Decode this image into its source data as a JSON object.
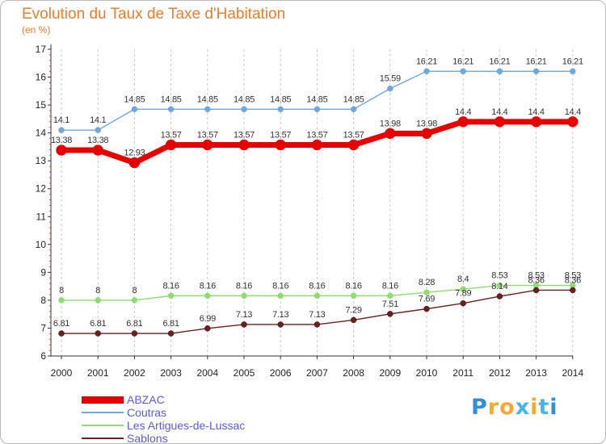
{
  "title": "Evolution du Taux de Taxe d'Habitation",
  "unit": "(en %)",
  "logo": {
    "text": "Proxiti",
    "colors": [
      "#2f8fd8",
      "#f2a93b",
      "#f2a93b",
      "#46b6e8",
      "#f2a93b",
      "#46b6e8",
      "#2f8fd8"
    ]
  },
  "chart_data": {
    "type": "line",
    "title": "Evolution du Taux de Taxe d'Habitation",
    "ylabel": "(en %)",
    "xlabel": "",
    "x": [
      "2000",
      "2001",
      "2002",
      "2003",
      "2004",
      "2005",
      "2006",
      "2007",
      "2008",
      "2009",
      "2010",
      "2011",
      "2012",
      "2013",
      "2014"
    ],
    "yticks": [
      "6",
      "7",
      "8",
      "9",
      "10",
      "11",
      "12",
      "13",
      "14",
      "15",
      "16",
      "17"
    ],
    "ylim": [
      6,
      17
    ],
    "grid": "vertical dashed",
    "legend_position": "bottom-left",
    "series": [
      {
        "name": "ABZAC",
        "color": "#e60000",
        "values": [
          13.38,
          13.38,
          12.93,
          13.57,
          13.57,
          13.57,
          13.57,
          13.57,
          13.57,
          13.98,
          13.98,
          14.4,
          14.4,
          14.4,
          14.4
        ],
        "labels": [
          "13.38",
          "13.38",
          "12.93",
          "13.57",
          "13.57",
          "13.57",
          "13.57",
          "13.57",
          "13.57",
          "13.98",
          "13.98",
          "14.4",
          "14.4",
          "14.4",
          "14.4"
        ]
      },
      {
        "name": "Coutras",
        "color": "#6fa8dc",
        "values": [
          14.1,
          14.1,
          14.85,
          14.85,
          14.85,
          14.85,
          14.85,
          14.85,
          14.85,
          15.59,
          16.21,
          16.21,
          16.21,
          16.21,
          16.21
        ],
        "labels": [
          "14.1",
          "14.1",
          "14.85",
          "14.85",
          "14.85",
          "14.85",
          "14.85",
          "14.85",
          "14.85",
          "15.59",
          "16.21",
          "16.21",
          "16.21",
          "16.21",
          "16.21"
        ]
      },
      {
        "name": "Les Artigues-de-Lussac",
        "color": "#8fdc6f",
        "values": [
          8,
          8,
          8,
          8.16,
          8.16,
          8.16,
          8.16,
          8.16,
          8.16,
          8.16,
          8.28,
          8.4,
          8.53,
          8.53,
          8.53
        ],
        "labels": [
          "8",
          "8",
          "8",
          "8.16",
          "8.16",
          "8.16",
          "8.16",
          "8.16",
          "8.16",
          "8.16",
          "8.28",
          "8.4",
          "8.53",
          "8.53",
          "8.53"
        ]
      },
      {
        "name": "Sablons",
        "color": "#6b1f1f",
        "values": [
          6.81,
          6.81,
          6.81,
          6.81,
          6.99,
          7.13,
          7.13,
          7.13,
          7.29,
          7.51,
          7.69,
          7.89,
          8.14,
          8.36,
          8.36
        ],
        "labels": [
          "6.81",
          "6.81",
          "6.81",
          "6.81",
          "6.99",
          "7.13",
          "7.13",
          "7.13",
          "7.29",
          "7.51",
          "7.69",
          "7.89",
          "8.14",
          "8.36",
          "8.36"
        ]
      }
    ]
  }
}
